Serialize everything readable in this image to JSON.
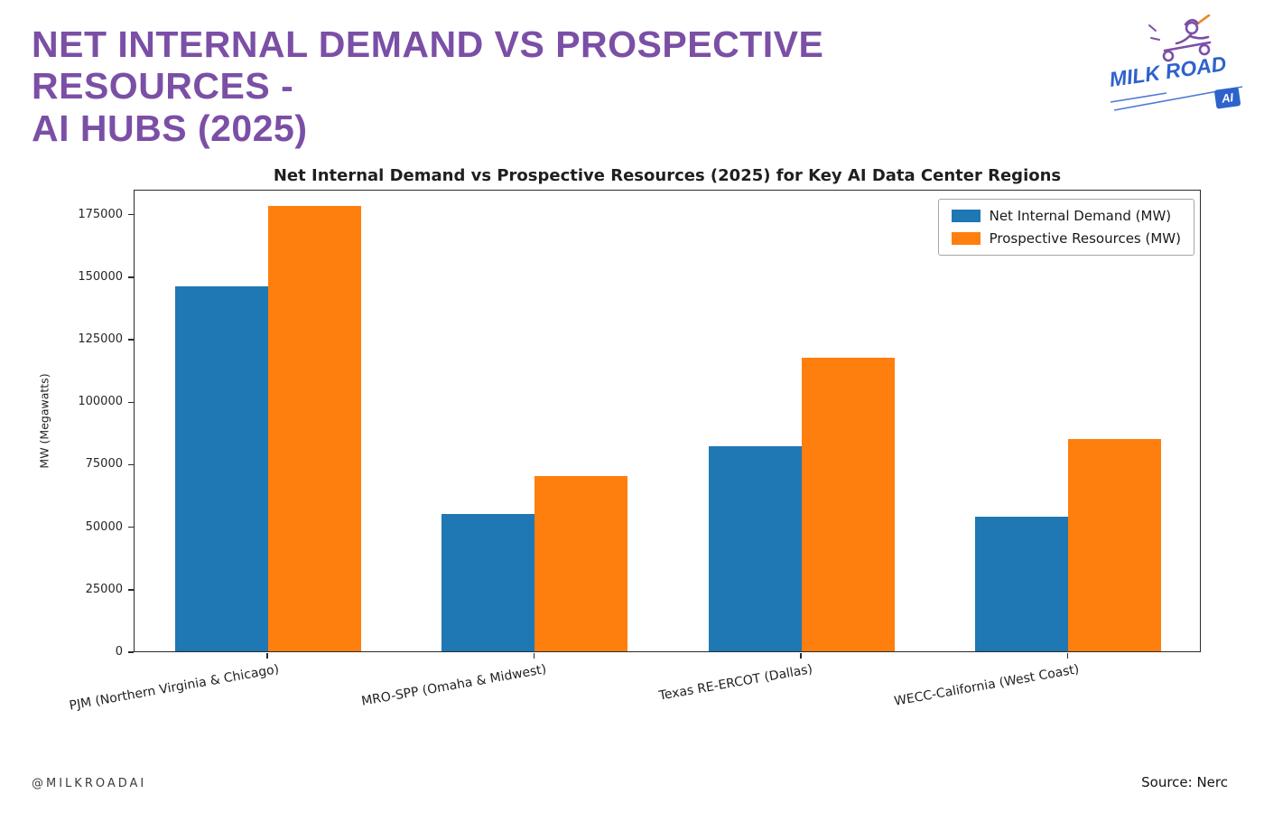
{
  "header": {
    "title_line1": "NET INTERNAL DEMAND VS PROSPECTIVE RESOURCES -",
    "title_line2": "AI HUBS (2025)",
    "logo": {
      "wordmark": "MILK ROAD",
      "badge": "AI"
    }
  },
  "footer": {
    "handle": "@MILKROADAI",
    "source": "Source: Nerc"
  },
  "colors": {
    "accent_purple": "#7b4fa6",
    "series_blue": "#1f77b4",
    "series_orange": "#ff7f0e"
  },
  "chart_data": {
    "type": "bar",
    "title": "Net Internal Demand vs Prospective Resources (2025) for Key AI Data Center Regions",
    "xlabel": "",
    "ylabel": "MW (Megawatts)",
    "categories": [
      "PJM (Northern Virginia & Chicago)",
      "MRO-SPP (Omaha & Midwest)",
      "Texas RE-ERCOT (Dallas)",
      "WECC-California (West Coast)"
    ],
    "series": [
      {
        "name": "Net Internal Demand (MW)",
        "color": "#1f77b4",
        "values": [
          146000,
          55000,
          82000,
          54000
        ]
      },
      {
        "name": "Prospective Resources (MW)",
        "color": "#ff7f0e",
        "values": [
          178000,
          70000,
          117500,
          85000
        ]
      }
    ],
    "ylim": [
      0,
      185000
    ],
    "yticks": [
      0,
      25000,
      50000,
      75000,
      100000,
      125000,
      150000,
      175000
    ],
    "legend_position": "upper right",
    "grid": false
  }
}
